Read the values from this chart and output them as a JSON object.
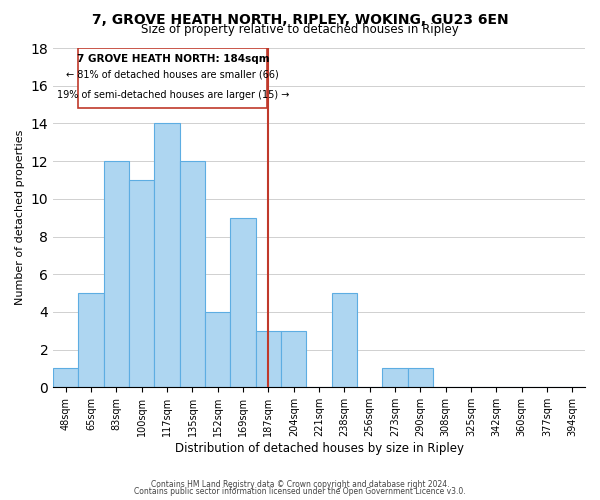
{
  "title": "7, GROVE HEATH NORTH, RIPLEY, WOKING, GU23 6EN",
  "subtitle": "Size of property relative to detached houses in Ripley",
  "xlabel": "Distribution of detached houses by size in Ripley",
  "ylabel": "Number of detached properties",
  "bar_color": "#aed6f1",
  "bar_edge_color": "#5dade2",
  "bins": [
    "48sqm",
    "65sqm",
    "83sqm",
    "100sqm",
    "117sqm",
    "135sqm",
    "152sqm",
    "169sqm",
    "187sqm",
    "204sqm",
    "221sqm",
    "238sqm",
    "256sqm",
    "273sqm",
    "290sqm",
    "308sqm",
    "325sqm",
    "342sqm",
    "360sqm",
    "377sqm",
    "394sqm"
  ],
  "counts": [
    1,
    5,
    12,
    11,
    14,
    12,
    4,
    9,
    3,
    3,
    0,
    5,
    0,
    1,
    1,
    0,
    0,
    0,
    0,
    0,
    0
  ],
  "property_line_x": 8,
  "property_value": "187sqm",
  "annotation_title": "7 GROVE HEATH NORTH: 184sqm",
  "annotation_line1": "← 81% of detached houses are smaller (66)",
  "annotation_line2": "19% of semi-detached houses are larger (15) →",
  "vline_color": "#c0392b",
  "ylim": [
    0,
    18
  ],
  "yticks": [
    0,
    2,
    4,
    6,
    8,
    10,
    12,
    14,
    16,
    18
  ],
  "footer1": "Contains HM Land Registry data © Crown copyright and database right 2024.",
  "footer2": "Contains public sector information licensed under the Open Government Licence v3.0."
}
